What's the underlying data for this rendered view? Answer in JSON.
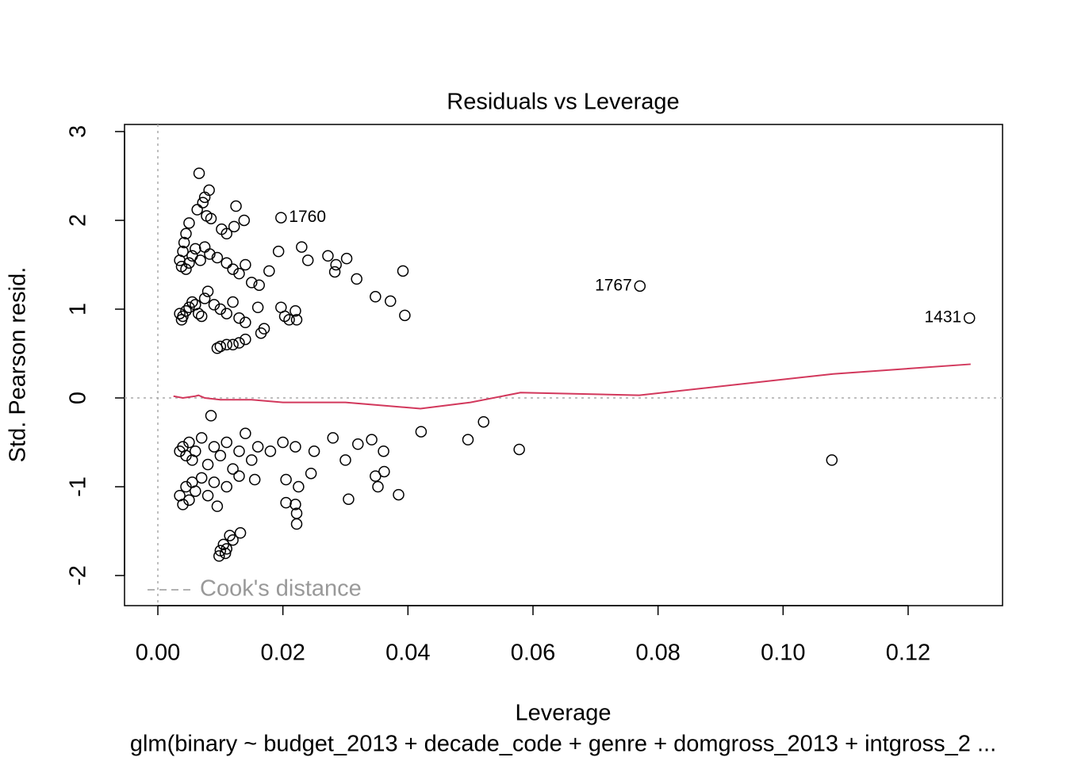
{
  "chart_data": {
    "type": "scatter",
    "title": "Residuals vs Leverage",
    "x_label": "Leverage",
    "y_label": "Std. Pearson resid.",
    "subtitle": "glm(binary ~ budget_2013 + decade_code + genre + domgross_2013 + intgross_2 ...",
    "xlim": [
      -0.00533,
      0.1351
    ],
    "ylim": [
      -2.339,
      3.08
    ],
    "xticks": [
      {
        "value": 0,
        "label": "0.00"
      },
      {
        "value": 0.02,
        "label": "0.02"
      },
      {
        "value": 0.04,
        "label": "0.04"
      },
      {
        "value": 0.06,
        "label": "0.06"
      },
      {
        "value": 0.08,
        "label": "0.08"
      },
      {
        "value": 0.1,
        "label": "0.10"
      },
      {
        "value": 0.12,
        "label": "0.12"
      }
    ],
    "yticks": [
      -2,
      -1,
      0,
      1,
      2,
      3
    ],
    "reference_hlines": [
      0
    ],
    "reference_vlines": [
      0
    ],
    "legend": {
      "label": "Cook's distance",
      "position": "bottomleft",
      "color": "#999999"
    },
    "series": [
      {
        "name": "residuals",
        "color": "#000000",
        "x": [
          0.0066,
          0.0082,
          0.0075,
          0.0072,
          0.0063,
          0.0078,
          0.0125,
          0.0138,
          0.0197,
          0.0085,
          0.0102,
          0.011,
          0.0122,
          0.005,
          0.0045,
          0.0042,
          0.004,
          0.0035,
          0.0038,
          0.0045,
          0.005,
          0.0055,
          0.006,
          0.0068,
          0.0075,
          0.0083,
          0.0095,
          0.011,
          0.012,
          0.013,
          0.014,
          0.015,
          0.0162,
          0.0178,
          0.0193,
          0.023,
          0.024,
          0.0272,
          0.0285,
          0.0283,
          0.0302,
          0.0318,
          0.0348,
          0.0372,
          0.0392,
          0.0395,
          0.0197,
          0.0203,
          0.021,
          0.022,
          0.0222,
          0.0035,
          0.0038,
          0.004,
          0.0045,
          0.005,
          0.0055,
          0.006,
          0.0065,
          0.007,
          0.0075,
          0.008,
          0.009,
          0.01,
          0.011,
          0.012,
          0.013,
          0.014,
          0.016,
          0.017,
          0.0165,
          0.014,
          0.013,
          0.012,
          0.011,
          0.01,
          0.0095,
          0.0085,
          0.0035,
          0.004,
          0.0045,
          0.005,
          0.0055,
          0.006,
          0.007,
          0.008,
          0.009,
          0.01,
          0.011,
          0.012,
          0.013,
          0.014,
          0.015,
          0.016,
          0.018,
          0.02,
          0.022,
          0.025,
          0.028,
          0.03,
          0.032,
          0.0342,
          0.0361,
          0.0421,
          0.0496,
          0.0521,
          0.0578,
          0.1078,
          0.0035,
          0.004,
          0.0045,
          0.005,
          0.0055,
          0.006,
          0.007,
          0.008,
          0.009,
          0.0095,
          0.011,
          0.013,
          0.0155,
          0.0205,
          0.0205,
          0.022,
          0.0222,
          0.0222,
          0.0225,
          0.0245,
          0.0305,
          0.0348,
          0.0352,
          0.0362,
          0.0385,
          0.0098,
          0.01,
          0.0105,
          0.011,
          0.0115,
          0.012,
          0.0132,
          0.0108,
          0.0771,
          0.1298
        ],
        "values": [
          2.53,
          2.34,
          2.26,
          2.2,
          2.12,
          2.05,
          2.16,
          2.0,
          2.03,
          2.02,
          1.9,
          1.85,
          1.93,
          1.97,
          1.85,
          1.75,
          1.65,
          1.55,
          1.48,
          1.45,
          1.52,
          1.6,
          1.68,
          1.55,
          1.7,
          1.62,
          1.58,
          1.52,
          1.45,
          1.4,
          1.5,
          1.3,
          1.27,
          1.43,
          1.65,
          1.7,
          1.55,
          1.6,
          1.5,
          1.42,
          1.57,
          1.34,
          1.14,
          1.09,
          1.43,
          0.93,
          1.02,
          0.92,
          0.88,
          0.98,
          0.88,
          0.95,
          0.88,
          0.92,
          0.98,
          1.02,
          1.08,
          1.05,
          0.95,
          0.92,
          1.12,
          1.2,
          1.05,
          1.0,
          0.95,
          1.08,
          0.9,
          0.85,
          1.02,
          0.78,
          0.73,
          0.66,
          0.62,
          0.6,
          0.6,
          0.58,
          0.56,
          -0.2,
          -0.6,
          -0.55,
          -0.65,
          -0.5,
          -0.7,
          -0.6,
          -0.45,
          -0.75,
          -0.55,
          -0.65,
          -0.5,
          -0.8,
          -0.6,
          -0.4,
          -0.7,
          -0.55,
          -0.6,
          -0.5,
          -0.55,
          -0.6,
          -0.45,
          -0.7,
          -0.52,
          -0.47,
          -0.6,
          -0.38,
          -0.47,
          -0.27,
          -0.58,
          -0.7,
          -1.1,
          -1.2,
          -1.0,
          -1.15,
          -0.95,
          -1.05,
          -0.9,
          -1.1,
          -0.95,
          -1.22,
          -1.0,
          -0.88,
          -0.92,
          -0.92,
          -1.18,
          -1.2,
          -1.3,
          -1.42,
          -1.0,
          -0.85,
          -1.14,
          -0.88,
          -1.0,
          -0.83,
          -1.09,
          -1.78,
          -1.72,
          -1.65,
          -1.7,
          -1.55,
          -1.6,
          -1.52,
          -1.75,
          1.26,
          0.9
        ]
      },
      {
        "name": "smooth",
        "color": "#d2385c",
        "x": [
          0.0025,
          0.004,
          0.006,
          0.0065,
          0.0075,
          0.01,
          0.015,
          0.02,
          0.03,
          0.042,
          0.05,
          0.058,
          0.077,
          0.108,
          0.13
        ],
        "values": [
          0.02,
          0.0,
          0.02,
          0.03,
          0.0,
          -0.02,
          -0.02,
          -0.05,
          -0.05,
          -0.12,
          -0.05,
          0.06,
          0.03,
          0.27,
          0.38
        ]
      }
    ],
    "annotations": [
      {
        "label": "1760",
        "x": 0.0197,
        "y": 2.03
      },
      {
        "label": "1767",
        "x": 0.0771,
        "y": 1.26
      },
      {
        "label": "1431",
        "x": 0.1298,
        "y": 0.9
      }
    ]
  }
}
